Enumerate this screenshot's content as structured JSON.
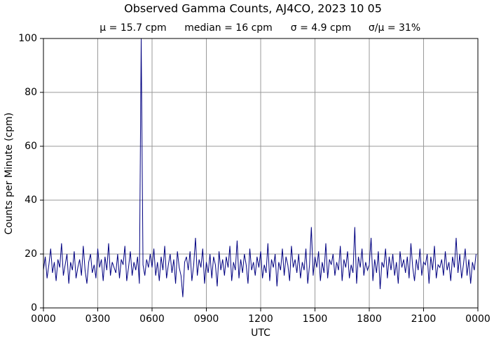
{
  "chart_data": {
    "type": "line",
    "title": "Observed Gamma Counts, AJ4CO, 2023 10 05",
    "annotations": [
      "μ = 15.7 cpm",
      "median = 16 cpm",
      "σ = 4.9 cpm",
      "σ/μ = 31%"
    ],
    "x_label": "UTC",
    "y_label": "Counts per Minute (cpm)",
    "xlim": [
      0,
      24
    ],
    "ylim": [
      0,
      100
    ],
    "xticks": [
      {
        "value": 0,
        "label": "0000"
      },
      {
        "value": 3,
        "label": "0300"
      },
      {
        "value": 6,
        "label": "0600"
      },
      {
        "value": 9,
        "label": "0900"
      },
      {
        "value": 12,
        "label": "1200"
      },
      {
        "value": 15,
        "label": "1500"
      },
      {
        "value": 18,
        "label": "1800"
      },
      {
        "value": 21,
        "label": "2100"
      },
      {
        "value": 24,
        "label": "0000"
      }
    ],
    "yticks": [
      0,
      20,
      40,
      60,
      80,
      100
    ],
    "grid": true,
    "x": [
      0,
      0.1,
      0.2,
      0.3,
      0.4,
      0.5,
      0.6,
      0.7,
      0.8,
      0.9,
      1,
      1.1,
      1.2,
      1.3,
      1.4,
      1.5,
      1.6,
      1.7,
      1.8,
      1.9,
      2,
      2.1,
      2.2,
      2.3,
      2.4,
      2.5,
      2.6,
      2.7,
      2.8,
      2.9,
      3,
      3.1,
      3.2,
      3.3,
      3.4,
      3.5,
      3.6,
      3.7,
      3.8,
      3.9,
      4,
      4.1,
      4.2,
      4.3,
      4.4,
      4.5,
      4.6,
      4.7,
      4.8,
      4.9,
      5,
      5.1,
      5.2,
      5.3,
      5.4,
      5.5,
      5.6,
      5.7,
      5.8,
      5.9,
      6,
      6.1,
      6.2,
      6.3,
      6.4,
      6.5,
      6.6,
      6.7,
      6.8,
      6.9,
      7,
      7.1,
      7.2,
      7.3,
      7.4,
      7.5,
      7.6,
      7.7,
      7.8,
      7.9,
      8,
      8.1,
      8.2,
      8.3,
      8.4,
      8.5,
      8.6,
      8.7,
      8.8,
      8.9,
      9,
      9.1,
      9.2,
      9.3,
      9.4,
      9.5,
      9.6,
      9.7,
      9.8,
      9.9,
      10,
      10.1,
      10.2,
      10.3,
      10.4,
      10.5,
      10.6,
      10.7,
      10.8,
      10.9,
      11,
      11.1,
      11.2,
      11.3,
      11.4,
      11.5,
      11.6,
      11.7,
      11.8,
      11.9,
      12,
      12.1,
      12.2,
      12.3,
      12.4,
      12.5,
      12.6,
      12.7,
      12.8,
      12.9,
      13,
      13.1,
      13.2,
      13.3,
      13.4,
      13.5,
      13.6,
      13.7,
      13.8,
      13.9,
      14,
      14.1,
      14.2,
      14.3,
      14.4,
      14.5,
      14.6,
      14.7,
      14.8,
      14.9,
      15,
      15.1,
      15.2,
      15.3,
      15.4,
      15.5,
      15.6,
      15.7,
      15.8,
      15.9,
      16,
      16.1,
      16.2,
      16.3,
      16.4,
      16.5,
      16.6,
      16.7,
      16.8,
      16.9,
      17,
      17.1,
      17.2,
      17.3,
      17.4,
      17.5,
      17.6,
      17.7,
      17.8,
      17.9,
      18,
      18.1,
      18.2,
      18.3,
      18.4,
      18.5,
      18.6,
      18.7,
      18.8,
      18.9,
      19,
      19.1,
      19.2,
      19.3,
      19.4,
      19.5,
      19.6,
      19.7,
      19.8,
      19.9,
      20,
      20.1,
      20.2,
      20.3,
      20.4,
      20.5,
      20.6,
      20.7,
      20.8,
      20.9,
      21,
      21.1,
      21.2,
      21.3,
      21.4,
      21.5,
      21.6,
      21.7,
      21.8,
      21.9,
      22,
      22.1,
      22.2,
      22.3,
      22.4,
      22.5,
      22.6,
      22.7,
      22.8,
      22.9,
      23,
      23.1,
      23.2,
      23.3,
      23.4,
      23.5,
      23.6,
      23.7,
      23.8,
      23.9
    ],
    "series": [
      {
        "color": "#000080",
        "values": [
          14,
          19,
          11,
          16,
          22,
          13,
          17,
          10,
          18,
          15,
          24,
          12,
          16,
          20,
          9,
          17,
          14,
          21,
          11,
          15,
          18,
          12,
          23,
          14,
          9,
          17,
          20,
          13,
          16,
          11,
          22,
          15,
          18,
          10,
          19,
          14,
          24,
          12,
          17,
          15,
          13,
          20,
          11,
          18,
          16,
          23,
          10,
          15,
          21,
          12,
          17,
          14,
          19,
          9,
          100,
          16,
          12,
          18,
          15,
          20,
          15,
          22,
          12,
          17,
          10,
          19,
          14,
          23,
          11,
          16,
          20,
          13,
          18,
          9,
          21,
          15,
          12,
          4,
          17,
          19,
          14,
          21,
          10,
          16,
          26,
          12,
          18,
          15,
          22,
          9,
          17,
          13,
          20,
          11,
          19,
          16,
          8,
          21,
          14,
          18,
          12,
          19,
          15,
          23,
          10,
          17,
          14,
          25,
          11,
          18,
          13,
          20,
          16,
          9,
          22,
          14,
          17,
          12,
          19,
          15,
          21,
          11,
          16,
          13,
          24,
          10,
          18,
          15,
          20,
          8,
          17,
          14,
          22,
          12,
          19,
          16,
          10,
          23,
          15,
          18,
          13,
          20,
          11,
          17,
          14,
          22,
          9,
          16,
          30,
          12,
          19,
          15,
          21,
          10,
          17,
          13,
          24,
          11,
          18,
          16,
          20,
          12,
          17,
          14,
          23,
          10,
          18,
          15,
          21,
          11,
          16,
          13,
          30,
          9,
          19,
          15,
          22,
          12,
          17,
          14,
          16,
          26,
          10,
          18,
          13,
          21,
          7,
          17,
          15,
          22,
          11,
          19,
          14,
          20,
          12,
          17,
          9,
          21,
          15,
          18,
          13,
          19,
          11,
          24,
          15,
          10,
          18,
          14,
          22,
          12,
          17,
          16,
          20,
          9,
          19,
          14,
          23,
          11,
          16,
          15,
          18,
          12,
          21,
          14,
          17,
          10,
          19,
          15,
          26,
          13,
          20,
          11,
          16,
          22,
          12,
          18,
          9,
          17,
          14,
          20
        ]
      }
    ]
  }
}
